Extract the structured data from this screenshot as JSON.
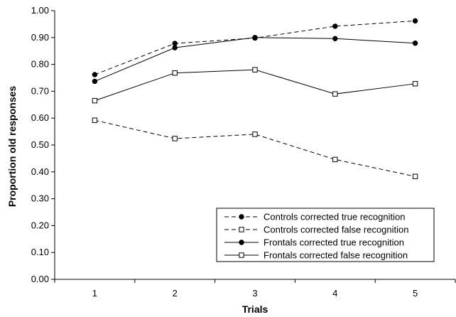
{
  "chart_data": {
    "type": "line",
    "title": "",
    "xlabel": "Trials",
    "ylabel": "Proportion old responses",
    "x": [
      1,
      2,
      3,
      4,
      5
    ],
    "x_tick_labels": [
      "1",
      "2",
      "3",
      "4",
      "5"
    ],
    "ylim": [
      0,
      1
    ],
    "y_tick_labels": [
      "0.00",
      "0.10",
      "0.20",
      "0.30",
      "0.40",
      "0.50",
      "0.60",
      "0.70",
      "0.80",
      "0.90",
      "1.00"
    ],
    "grid": false,
    "legend_position": "bottom-right",
    "series": [
      {
        "name": "Controls corrected true recognition",
        "line_style": "dashed",
        "marker": "filled-circle",
        "values": [
          0.762,
          0.878,
          0.898,
          0.942,
          0.962
        ]
      },
      {
        "name": "Controls corrected false recognition",
        "line_style": "dashed",
        "marker": "open-square",
        "values": [
          0.592,
          0.524,
          0.54,
          0.446,
          0.383
        ]
      },
      {
        "name": "Frontals corrected true recognition",
        "line_style": "solid",
        "marker": "filled-circle",
        "values": [
          0.737,
          0.862,
          0.9,
          0.896,
          0.879
        ]
      },
      {
        "name": "Frontals corrected false recognition",
        "line_style": "solid",
        "marker": "open-square",
        "values": [
          0.665,
          0.768,
          0.78,
          0.69,
          0.728
        ]
      }
    ]
  }
}
